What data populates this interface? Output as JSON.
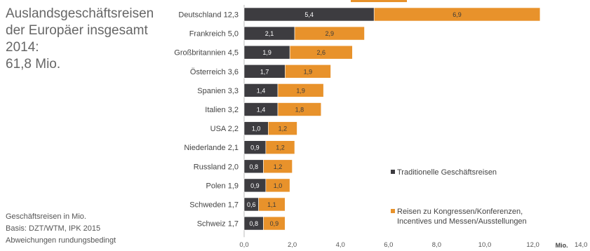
{
  "headline": {
    "line1": "Auslandsgeschäftsreisen",
    "line2": "der Europäer insgesamt",
    "line3": "2014:",
    "line4": "61,8 Mio."
  },
  "footnote": {
    "line1": "Geschäftsreisen in Mio.",
    "line2": "Basis: DZT/WTM, IPK 2015",
    "line3": "Abweichungen rundungsbedingt"
  },
  "colors": {
    "traditional": "#3d3c40",
    "events": "#e8922b"
  },
  "chart_data": {
    "type": "bar",
    "orientation": "horizontal",
    "stacked": true,
    "categories": [
      "Deutschland 12,3",
      "Frankreich 5,0",
      "Großbritannien 4,5",
      "Österreich 3,6",
      "Spanien 3,3",
      "Italien 3,2",
      "USA 2,2",
      "Niederlande 2,1",
      "Russland 2,0",
      "Polen 1,9",
      "Schweden 1,7",
      "Schweiz 1,7"
    ],
    "series": [
      {
        "name": "Traditionelle Geschäftsreisen",
        "values": [
          5.4,
          2.1,
          1.9,
          1.7,
          1.4,
          1.4,
          1.0,
          0.9,
          0.8,
          0.9,
          0.6,
          0.8
        ],
        "labels": [
          "5,4",
          "2,1",
          "1,9",
          "1,7",
          "1,4",
          "1,4",
          "1,0",
          "0,9",
          "0,8",
          "0,9",
          "0,6",
          "0,8"
        ]
      },
      {
        "name": "Reisen zu Kongressen/Konferenzen, Incentives und Messen/Ausstellungen",
        "values": [
          6.9,
          2.9,
          2.6,
          1.9,
          1.9,
          1.8,
          1.2,
          1.2,
          1.2,
          1.0,
          1.1,
          0.9
        ],
        "labels": [
          "6,9",
          "2,9",
          "2,6",
          "1,9",
          "1,9",
          "1,8",
          "1,2",
          "1,2",
          "1,2",
          "1,0",
          "1,1",
          "0,9"
        ]
      }
    ],
    "xlim": [
      0,
      14
    ],
    "xticks": [
      "0,0",
      "2,0",
      "4,0",
      "6,0",
      "8,0",
      "10,0",
      "12,0",
      "14,0"
    ],
    "xunit": "Mio.",
    "legend": {
      "line1": "Traditionelle Geschäftsreisen",
      "line2a": "Reisen zu Kongressen/Konferenzen,",
      "line2b": "Incentives und Messen/Ausstellungen"
    },
    "legend_position": "right"
  }
}
